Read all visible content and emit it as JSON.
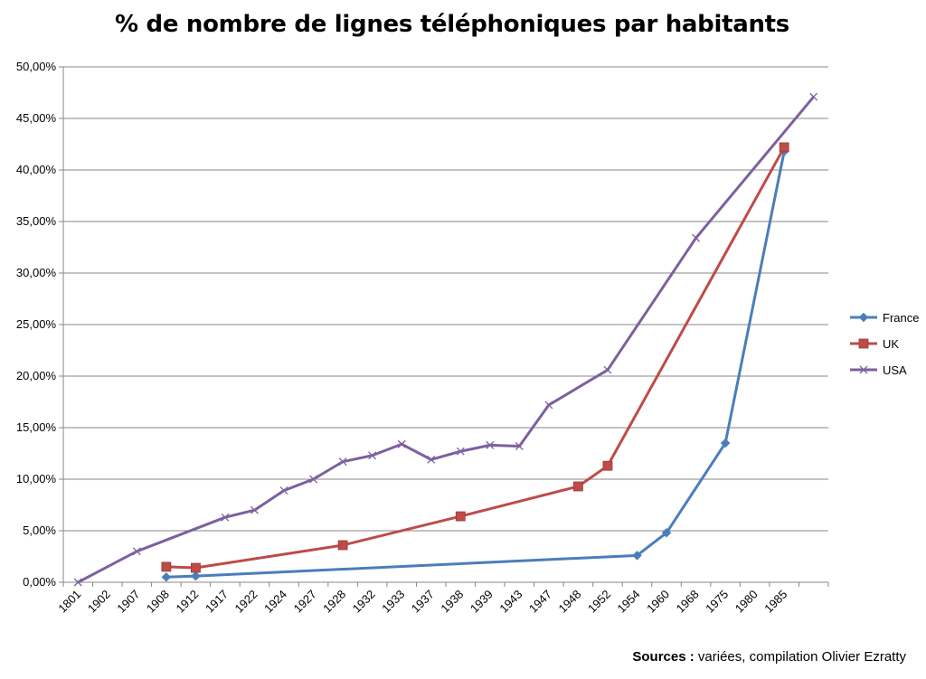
{
  "chart_data": {
    "type": "line",
    "title": "% de nombre de lignes téléphoniques par habitants",
    "categories": [
      "1801",
      "1902",
      "1907",
      "1908",
      "1912",
      "1917",
      "1922",
      "1924",
      "1927",
      "1928",
      "1932",
      "1933",
      "1937",
      "1938",
      "1939",
      "1943",
      "1947",
      "1948",
      "1952",
      "1954",
      "1960",
      "1968",
      "1975",
      "1980",
      "1985",
      ""
    ],
    "y_ticks": [
      "0,00%",
      "5,00%",
      "10,00%",
      "15,00%",
      "20,00%",
      "25,00%",
      "30,00%",
      "35,00%",
      "40,00%",
      "45,00%",
      "50,00%"
    ],
    "ylim": [
      0,
      50
    ],
    "grid": true,
    "legend_position": "right",
    "series": [
      {
        "name": "France",
        "color": "#4a7ebb",
        "marker": "diamond",
        "points": [
          [
            3,
            0.5
          ],
          [
            4,
            0.6
          ],
          [
            19,
            2.6
          ],
          [
            20,
            4.8
          ],
          [
            22,
            13.5
          ],
          [
            24,
            41.8
          ]
        ]
      },
      {
        "name": "UK",
        "color": "#be4b48",
        "marker": "square",
        "points": [
          [
            3,
            1.5
          ],
          [
            4,
            1.4
          ],
          [
            9,
            3.6
          ],
          [
            13,
            6.4
          ],
          [
            17,
            9.3
          ],
          [
            18,
            11.3
          ],
          [
            24,
            42.2
          ]
        ]
      },
      {
        "name": "USA",
        "color": "#7d60a0",
        "marker": "x",
        "points": [
          [
            0,
            0
          ],
          [
            2,
            3.0
          ],
          [
            5,
            6.3
          ],
          [
            6,
            7.0
          ],
          [
            7,
            8.9
          ],
          [
            8,
            10.0
          ],
          [
            9,
            11.7
          ],
          [
            10,
            12.3
          ],
          [
            11,
            13.4
          ],
          [
            12,
            11.9
          ],
          [
            13,
            12.7
          ],
          [
            14,
            13.3
          ],
          [
            15,
            13.2
          ],
          [
            16,
            17.2
          ],
          [
            18,
            20.6
          ],
          [
            21,
            33.4
          ],
          [
            25,
            47.1
          ]
        ]
      }
    ]
  },
  "source": {
    "label": "Sources :",
    "text": " variées,  compilation Olivier Ezratty"
  }
}
